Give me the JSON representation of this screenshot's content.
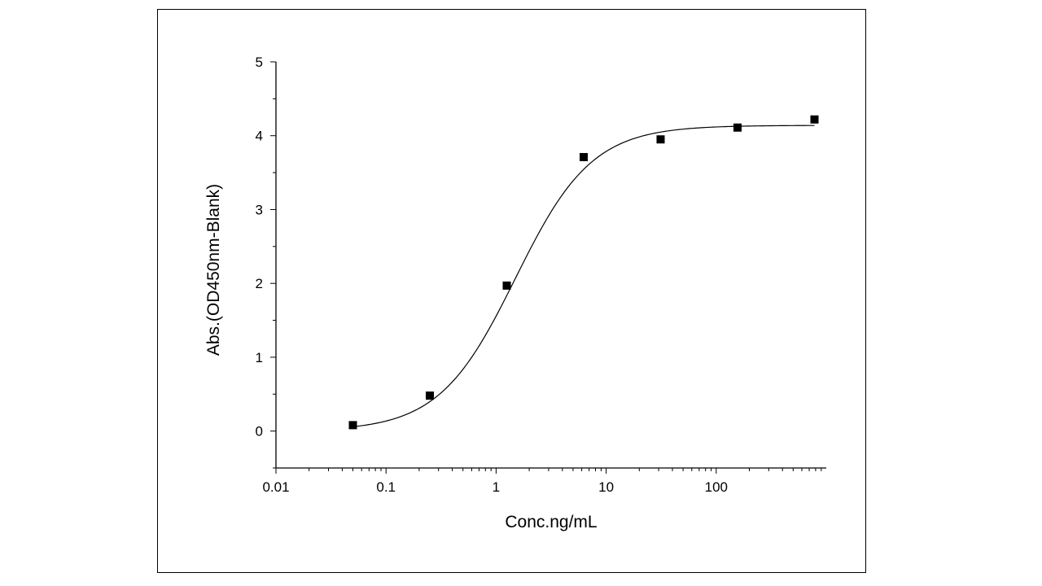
{
  "chart_data": {
    "type": "scatter",
    "title": "",
    "xlabel": "Conc.ng/mL",
    "ylabel": "Abs.(OD450nm-Blank)",
    "x_scale": "log",
    "xlim": [
      0.01,
      1000
    ],
    "ylim": [
      -0.5,
      5
    ],
    "x_ticks": [
      {
        "value": 0.01,
        "label": "0.01"
      },
      {
        "value": 0.1,
        "label": "0.1"
      },
      {
        "value": 1,
        "label": "1"
      },
      {
        "value": 10,
        "label": "10"
      },
      {
        "value": 100,
        "label": "100"
      }
    ],
    "y_ticks": [
      {
        "value": 0,
        "label": "0"
      },
      {
        "value": 1,
        "label": "1"
      },
      {
        "value": 2,
        "label": "2"
      },
      {
        "value": 3,
        "label": "3"
      },
      {
        "value": 4,
        "label": "4"
      },
      {
        "value": 5,
        "label": "5"
      }
    ],
    "grid": false,
    "legend": "none",
    "series": [
      {
        "marker": "square",
        "color": "#000000",
        "points": [
          {
            "x": 0.05,
            "y": 0.08
          },
          {
            "x": 0.25,
            "y": 0.48
          },
          {
            "x": 1.25,
            "y": 1.97
          },
          {
            "x": 6.25,
            "y": 3.71
          },
          {
            "x": 31.25,
            "y": 3.95
          },
          {
            "x": 156.25,
            "y": 4.11
          },
          {
            "x": 781.25,
            "y": 4.22
          }
        ]
      }
    ],
    "fit_curve": {
      "model": "4PL",
      "bottom": 0.0,
      "top": 4.14,
      "ec50": 1.5,
      "hill": 1.25,
      "x_range": [
        0.05,
        781.25
      ],
      "color": "#000000"
    }
  }
}
